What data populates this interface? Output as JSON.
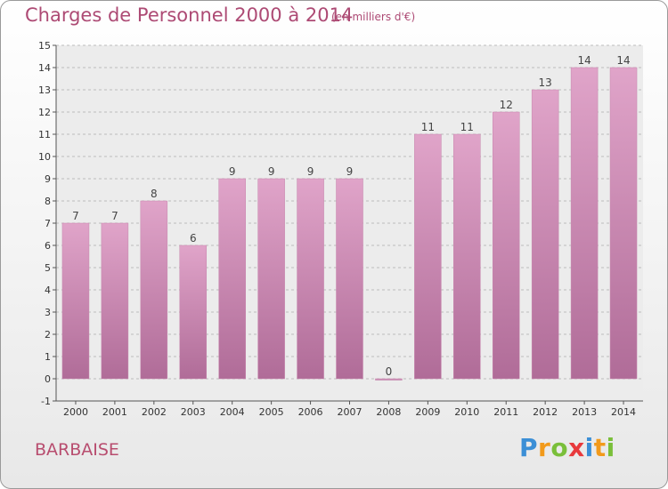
{
  "header": {
    "title": "Charges de Personnel 2000 à 2014",
    "subtitle": "(en milliers d'€)"
  },
  "footer": {
    "commune": "BARBAISE",
    "logo": "Proxiti"
  },
  "colors": {
    "bar_top": "#e0a4c9",
    "bar_bottom": "#b06c98",
    "title": "#ad4a74",
    "grid": "#bdbdbd"
  },
  "chart_data": {
    "type": "bar",
    "title": "Charges de Personnel 2000 à 2014",
    "subtitle": "(en milliers d'€)",
    "categories": [
      "2000",
      "2001",
      "2002",
      "2003",
      "2004",
      "2005",
      "2006",
      "2007",
      "2008",
      "2009",
      "2010",
      "2011",
      "2012",
      "2013",
      "2014"
    ],
    "values": [
      7,
      7,
      8,
      6,
      9,
      9,
      9,
      9,
      0,
      11,
      11,
      12,
      13,
      14,
      14
    ],
    "value_labels": [
      "7",
      "7",
      "8",
      "6",
      "9",
      "9",
      "9",
      "9",
      "0",
      "11",
      "11",
      "12",
      "13",
      "14",
      "14"
    ],
    "y_ticks": [
      "-1",
      "0",
      "1",
      "2",
      "3",
      "4",
      "5",
      "6",
      "7",
      "8",
      "9",
      "10",
      "11",
      "12",
      "13",
      "14",
      "15"
    ],
    "ylim": [
      -1,
      15
    ],
    "grid": "horizontal dashed",
    "legend": "none"
  }
}
